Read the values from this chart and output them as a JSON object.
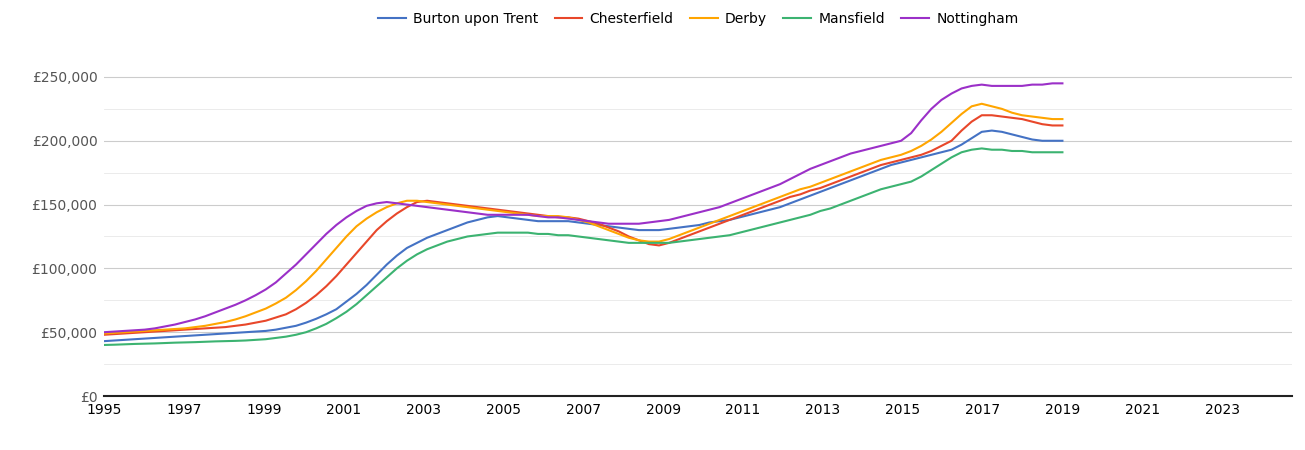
{
  "series": {
    "Burton upon Trent": {
      "color": "#4472C4",
      "values": [
        43000,
        43500,
        44000,
        44500,
        45000,
        45500,
        46000,
        46500,
        47000,
        47500,
        48000,
        48500,
        49000,
        49500,
        50000,
        50500,
        51000,
        52000,
        53500,
        55000,
        57500,
        60500,
        64000,
        68000,
        74000,
        80000,
        87000,
        95000,
        103000,
        110000,
        116000,
        120000,
        124000,
        127000,
        130000,
        133000,
        136000,
        138000,
        140000,
        141000,
        140000,
        139000,
        138000,
        137000,
        137000,
        137000,
        137000,
        136000,
        135000,
        134000,
        133000,
        132000,
        131000,
        130000,
        130000,
        130000,
        131000,
        132000,
        133000,
        134000,
        136000,
        137000,
        138000,
        140000,
        142000,
        144000,
        146000,
        148000,
        151000,
        154000,
        157000,
        160000,
        163000,
        166000,
        169000,
        172000,
        175000,
        178000,
        181000,
        183000,
        185000,
        187000,
        189000,
        191000,
        193000,
        197000,
        202000,
        207000,
        208000,
        207000,
        205000,
        203000,
        201000,
        200000,
        200000,
        200000
      ]
    },
    "Chesterfield": {
      "color": "#E8472A",
      "values": [
        48000,
        48500,
        49000,
        49500,
        50000,
        50500,
        51000,
        51500,
        52000,
        52500,
        53000,
        53500,
        54000,
        55000,
        56000,
        57500,
        59000,
        61500,
        64000,
        68000,
        73000,
        79000,
        86000,
        94000,
        103000,
        112000,
        121000,
        130000,
        137000,
        143000,
        148000,
        152000,
        153000,
        152000,
        151000,
        150000,
        149000,
        148000,
        147000,
        146000,
        145000,
        144000,
        143000,
        142000,
        141000,
        140000,
        140000,
        139000,
        137000,
        135000,
        132000,
        129000,
        125000,
        122000,
        119000,
        118000,
        120000,
        123000,
        126000,
        129000,
        132000,
        135000,
        138000,
        141000,
        144000,
        147000,
        150000,
        153000,
        156000,
        158000,
        161000,
        163000,
        166000,
        169000,
        172000,
        175000,
        178000,
        181000,
        183000,
        185000,
        187000,
        189000,
        192000,
        196000,
        200000,
        208000,
        215000,
        220000,
        220000,
        219000,
        218000,
        217000,
        215000,
        213000,
        212000,
        212000
      ]
    },
    "Derby": {
      "color": "#FFA500",
      "values": [
        49000,
        49500,
        50000,
        50500,
        51000,
        51500,
        52000,
        52500,
        53000,
        54000,
        55000,
        56500,
        58000,
        60000,
        62500,
        65500,
        68500,
        72500,
        77000,
        83000,
        90000,
        98000,
        107000,
        116000,
        125000,
        133000,
        139000,
        144000,
        148000,
        151000,
        153000,
        153000,
        152000,
        151000,
        150000,
        149000,
        148000,
        147000,
        146000,
        145000,
        144000,
        143000,
        142000,
        141000,
        141000,
        141000,
        140000,
        138000,
        136000,
        133000,
        130000,
        127000,
        124000,
        122000,
        121000,
        121000,
        123000,
        126000,
        129000,
        132000,
        135000,
        138000,
        141000,
        144000,
        147000,
        150000,
        153000,
        156000,
        159000,
        162000,
        164000,
        167000,
        170000,
        173000,
        176000,
        179000,
        182000,
        185000,
        187000,
        189000,
        192000,
        196000,
        201000,
        207000,
        214000,
        221000,
        227000,
        229000,
        227000,
        225000,
        222000,
        220000,
        219000,
        218000,
        217000,
        217000
      ]
    },
    "Mansfield": {
      "color": "#3CB371",
      "values": [
        40000,
        40200,
        40500,
        40800,
        41000,
        41200,
        41500,
        41800,
        42000,
        42200,
        42500,
        42800,
        43000,
        43200,
        43500,
        44000,
        44500,
        45500,
        46500,
        48000,
        50000,
        53000,
        56500,
        61000,
        66000,
        72000,
        79000,
        86000,
        93000,
        100000,
        106000,
        111000,
        115000,
        118000,
        121000,
        123000,
        125000,
        126000,
        127000,
        128000,
        128000,
        128000,
        128000,
        127000,
        127000,
        126000,
        126000,
        125000,
        124000,
        123000,
        122000,
        121000,
        120000,
        120000,
        120000,
        120000,
        120000,
        121000,
        122000,
        123000,
        124000,
        125000,
        126000,
        128000,
        130000,
        132000,
        134000,
        136000,
        138000,
        140000,
        142000,
        145000,
        147000,
        150000,
        153000,
        156000,
        159000,
        162000,
        164000,
        166000,
        168000,
        172000,
        177000,
        182000,
        187000,
        191000,
        193000,
        194000,
        193000,
        193000,
        192000,
        192000,
        191000,
        191000,
        191000,
        191000
      ]
    },
    "Nottingham": {
      "color": "#9B30C8",
      "values": [
        50000,
        50500,
        51000,
        51500,
        52000,
        53000,
        54500,
        56000,
        58000,
        60000,
        62500,
        65500,
        68500,
        71500,
        75000,
        79000,
        83500,
        89000,
        96000,
        103000,
        111000,
        119000,
        127000,
        134000,
        140000,
        145000,
        149000,
        151000,
        152000,
        151000,
        150000,
        149000,
        148000,
        147000,
        146000,
        145000,
        144000,
        143000,
        142000,
        142000,
        142000,
        142000,
        142000,
        141000,
        140000,
        140000,
        139000,
        138000,
        137000,
        136000,
        135000,
        135000,
        135000,
        135000,
        136000,
        137000,
        138000,
        140000,
        142000,
        144000,
        146000,
        148000,
        151000,
        154000,
        157000,
        160000,
        163000,
        166000,
        170000,
        174000,
        178000,
        181000,
        184000,
        187000,
        190000,
        192000,
        194000,
        196000,
        198000,
        200000,
        206000,
        216000,
        225000,
        232000,
        237000,
        241000,
        243000,
        244000,
        243000,
        243000,
        243000,
        243000,
        244000,
        244000,
        245000,
        245000
      ]
    }
  },
  "xtick_years": [
    1995,
    1997,
    1999,
    2001,
    2003,
    2005,
    2007,
    2009,
    2011,
    2013,
    2015,
    2017,
    2019,
    2021,
    2023
  ],
  "ytick_major": [
    0,
    50000,
    100000,
    150000,
    200000,
    250000
  ],
  "ytick_minor": [
    25000,
    75000,
    125000,
    175000,
    225000
  ],
  "ytick_labels": [
    "£0",
    "£50,000",
    "£100,000",
    "£150,000",
    "£200,000",
    "£250,000"
  ],
  "ylim": [
    0,
    268000
  ],
  "xlim_start": 1995.0,
  "xlim_end": 2024.75,
  "background_color": "#ffffff",
  "grid_major_color": "#cccccc",
  "grid_minor_color": "#e8e8e8",
  "line_width": 1.5,
  "legend_fontsize": 10,
  "tick_fontsize": 10,
  "n_points": 96,
  "start_year": 1995,
  "end_year": 2019
}
